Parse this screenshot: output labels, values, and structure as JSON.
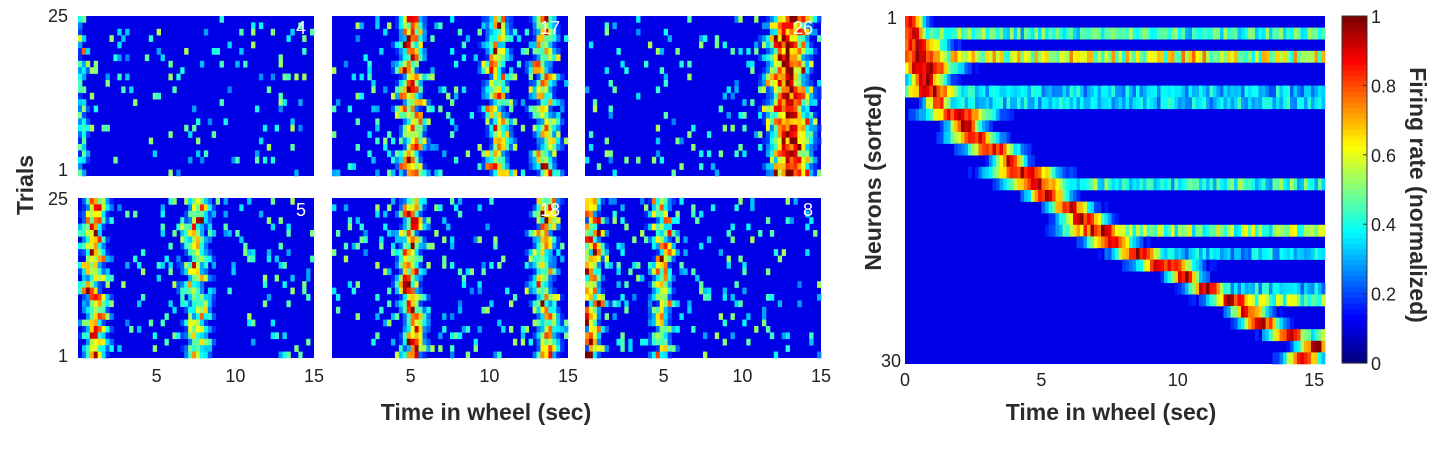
{
  "chart_data": [
    {
      "type": "heatmap",
      "description_source": "raster panels of single-neuron firing across trials",
      "xlabel": "Time in wheel (sec)",
      "ylabel": "Trials",
      "xlim": [
        0,
        15
      ],
      "ylim": [
        1,
        25
      ],
      "x_ticks": [
        "5",
        "10",
        "15"
      ],
      "y_ticks_top": [
        "25",
        "1"
      ],
      "y_ticks_bottom": [
        "25",
        "1"
      ],
      "panels": [
        {
          "neuron_id": "4",
          "row": 0,
          "col": 0,
          "peak_times": [
            0.1
          ],
          "spread": 0.25,
          "intensity": 0.55,
          "background_noise": 0.08
        },
        {
          "neuron_id": "17",
          "row": 0,
          "col": 1,
          "peak_times": [
            5.0,
            10.5,
            13.5
          ],
          "spread": 0.6,
          "intensity": 0.9,
          "background_noise": 0.12
        },
        {
          "neuron_id": "26",
          "row": 0,
          "col": 2,
          "peak_times": [
            12.5,
            13.5
          ],
          "spread": 0.8,
          "intensity": 0.85,
          "background_noise": 0.08
        },
        {
          "neuron_id": "5",
          "row": 1,
          "col": 0,
          "peak_times": [
            1.0,
            7.5
          ],
          "spread": 0.6,
          "intensity": 0.9,
          "background_noise": 0.1
        },
        {
          "neuron_id": "18",
          "row": 1,
          "col": 1,
          "peak_times": [
            5.0,
            13.5
          ],
          "spread": 0.6,
          "intensity": 0.9,
          "background_noise": 0.12
        },
        {
          "neuron_id": "8",
          "row": 1,
          "col": 2,
          "peak_times": [
            0.5,
            5.0
          ],
          "spread": 0.5,
          "intensity": 0.95,
          "background_noise": 0.1
        }
      ]
    },
    {
      "type": "heatmap",
      "xlabel": "Time in wheel (sec)",
      "ylabel": "Neurons (sorted)",
      "xlim": [
        0,
        15
      ],
      "x_ticks": [
        "0",
        "5",
        "10",
        "15"
      ],
      "y_ticks": [
        "1",
        "30"
      ],
      "n_neurons": 30,
      "peak_times": [
        0.2,
        0.3,
        0.5,
        0.6,
        0.7,
        0.8,
        1.0,
        1.2,
        2.0,
        2.2,
        2.5,
        3.2,
        3.8,
        4.3,
        4.8,
        5.2,
        6.0,
        6.5,
        7.0,
        7.5,
        8.5,
        9.5,
        10.2,
        11.0,
        12.0,
        12.5,
        13.0,
        14.0,
        15.0,
        14.5
      ],
      "colorbar": {
        "label": "Firing rate (normalized)",
        "ticks": [
          "1",
          "0.8",
          "0.6",
          "0.4",
          "0.2",
          "0"
        ],
        "range": [
          0,
          1
        ],
        "colormap": "jet"
      }
    }
  ]
}
